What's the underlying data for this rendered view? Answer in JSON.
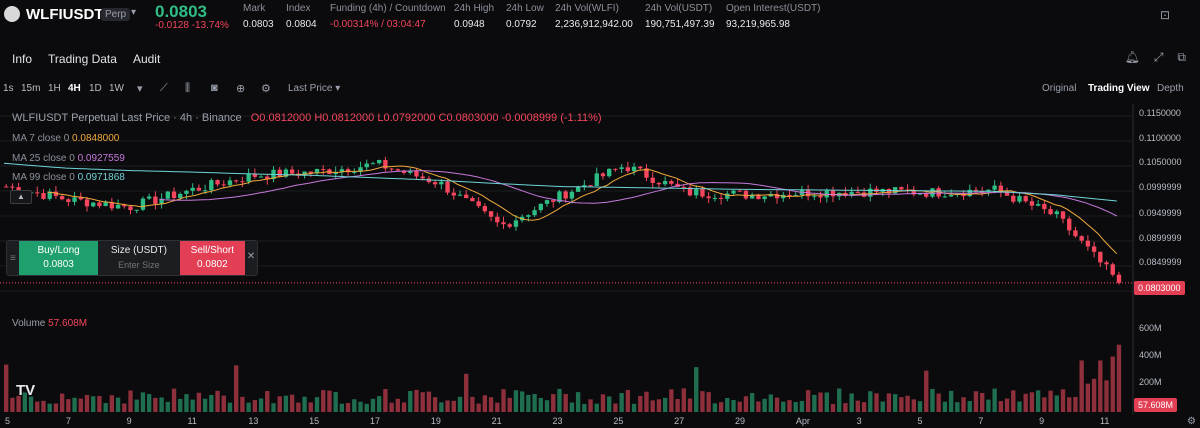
{
  "ticker": {
    "symbol": "WLFIUSDT",
    "badge": "Perp",
    "price": "0.0803",
    "change": "-0.0128 -13.74%",
    "stats": [
      {
        "label": "Mark",
        "value": "0.0803",
        "red": false
      },
      {
        "label": "Index",
        "value": "0.0804",
        "red": false
      },
      {
        "label": "Funding (4h) / Countdown",
        "value": "-0.00314% / 03:04:47",
        "red": true
      },
      {
        "label": "24h High",
        "value": "0.0948",
        "red": false
      },
      {
        "label": "24h Low",
        "value": "0.0792",
        "red": false
      },
      {
        "label": "24h Vol(WLFI)",
        "value": "2,236,912,942.00",
        "red": false
      },
      {
        "label": "24h Vol(USDT)",
        "value": "190,751,497.39",
        "red": false
      },
      {
        "label": "Open Interest(USDT)",
        "value": "93,219,965.98",
        "red": false
      }
    ]
  },
  "tabs": [
    "Info",
    "Trading Data",
    "Audit"
  ],
  "toolbar": {
    "timeframes": [
      "1s",
      "15m",
      "1H",
      "4H",
      "1D",
      "1W"
    ],
    "active_timeframe": "4H",
    "price_type": "Last Price",
    "views": [
      "Original",
      "Trading View",
      "Depth"
    ],
    "active_view": "Trading View"
  },
  "chart_info": {
    "title": "WLFIUSDT Perpetual Last Price · 4h · Binance",
    "ohlc": "O0.0812000 H0.0812000 L0.0792000 C0.0803000 -0.0008999 (-1.11%)",
    "ma7_label": "MA 7 close 0",
    "ma7_value": "0.0848000",
    "ma25_label": "MA 25 close 0",
    "ma25_value": "0.0927559",
    "ma99_label": "MA 99 close 0",
    "ma99_value": "0.0971868"
  },
  "trade": {
    "buy_label": "Buy/Long",
    "buy_price": "0.0803",
    "size_label": "Size (USDT)",
    "size_placeholder": "Enter Size",
    "sell_label": "Sell/Short",
    "sell_price": "0.0802"
  },
  "volume": {
    "label": "Volume",
    "value": "57.608M"
  },
  "price_axis": [
    "0.1150000",
    "0.1100000",
    "0.1050000",
    "0.0999999",
    "0.0949999",
    "0.0899999",
    "0.0849999",
    "0.0803000"
  ],
  "volume_axis": [
    "600M",
    "400M",
    "200M",
    "57.608M"
  ],
  "date_axis": [
    "5",
    "7",
    "9",
    "11",
    "13",
    "15",
    "17",
    "19",
    "21",
    "23",
    "25",
    "27",
    "29",
    "Apr",
    "3",
    "5",
    "7",
    "9",
    "11"
  ],
  "colors": {
    "up": "#2ebd85",
    "down": "#f6465d",
    "ma7": "#f0a93b",
    "ma25": "#c678dd",
    "ma99": "#6fd4d8"
  },
  "chart_data": {
    "type": "candlestick",
    "title": "WLFIUSDT Perpetual Last Price · 4h · Binance",
    "x": [
      "5",
      "7",
      "9",
      "11",
      "13",
      "15",
      "17",
      "19",
      "21",
      "23",
      "25",
      "27",
      "29",
      "Apr",
      "3",
      "5",
      "7",
      "9",
      "11"
    ],
    "close_path": [
      0.1002,
      0.0975,
      0.096,
      0.0995,
      0.1025,
      0.1032,
      0.1048,
      0.101,
      0.092,
      0.0985,
      0.1045,
      0.099,
      0.0985,
      0.099,
      0.0992,
      0.099,
      0.0995,
      0.094,
      0.0803
    ],
    "ma99_path": [
      0.105,
      0.104,
      0.1035,
      0.1032,
      0.1028,
      0.1025,
      0.102,
      0.1015,
      0.1008,
      0.1002,
      0.1,
      0.0998,
      0.0996,
      0.0995,
      0.0994,
      0.0993,
      0.0992,
      0.0985,
      0.0972
    ],
    "ylim": [
      0.078,
      0.116
    ],
    "volume_ylim": [
      0,
      700000000
    ]
  }
}
